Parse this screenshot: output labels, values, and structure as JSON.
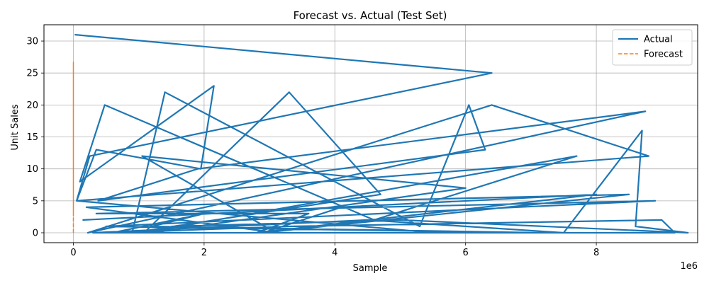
{
  "chart_data": {
    "type": "line",
    "title": "Forecast vs. Actual (Test Set)",
    "xlabel": "Sample",
    "ylabel": "Unit Sales",
    "x_offset_text": "1e6",
    "xlim": [
      -0.45,
      9.55
    ],
    "ylim": [
      -1.55,
      32.55
    ],
    "x_ticks": [
      0,
      2,
      4,
      6,
      8
    ],
    "x_tick_labels": [
      "0",
      "2",
      "4",
      "6",
      "8"
    ],
    "y_ticks": [
      0,
      5,
      10,
      15,
      20,
      25,
      30
    ],
    "y_tick_labels": [
      "0",
      "5",
      "10",
      "15",
      "20",
      "25",
      "30"
    ],
    "grid": true,
    "legend": "top-right",
    "series": [
      {
        "name": "Actual",
        "color": "#1f77b4",
        "style": "solid",
        "x": [
          0.02,
          6.4,
          0.25,
          0.05,
          0.35,
          1.95,
          2.15,
          0.1,
          0.48,
          4.6,
          7.7,
          1.08,
          3.3,
          4.7,
          0.9,
          1.4,
          5.3,
          6.05,
          6.3,
          0.38,
          1.9,
          8.75,
          0.22,
          6.4,
          8.8,
          0.05,
          5.5,
          1.2,
          6.0,
          1.05,
          3.1,
          0.2,
          8.5,
          2.9,
          4.1,
          0.15,
          8.0,
          2.8,
          3.6,
          0.35,
          8.9,
          0.5,
          7.2,
          1.2,
          2.0,
          0.6,
          3.3,
          9.0,
          9.2,
          0.3,
          4.5,
          7.5,
          8.7,
          8.6,
          9.4,
          5.0,
          1.5
        ],
        "y": [
          31,
          25,
          12,
          5,
          13,
          10,
          23,
          8,
          20,
          2,
          12,
          0,
          22,
          6,
          0,
          22,
          1,
          20,
          13,
          5,
          10,
          19,
          0,
          20,
          12,
          5,
          0,
          0,
          7,
          12,
          0,
          4,
          6,
          0,
          4,
          2,
          6,
          0,
          3,
          3,
          5,
          1,
          0,
          1,
          3,
          0,
          1,
          2,
          0,
          0,
          2,
          0,
          16,
          1,
          0,
          2,
          1
        ]
      },
      {
        "name": "Forecast",
        "color": "#ff7f0e",
        "style": "dashed",
        "x": [
          0.0,
          0.0,
          0.0,
          0.0,
          0.0,
          0.0
        ],
        "y": [
          0.0,
          26.7,
          3.0,
          18.0,
          5.0,
          12.0
        ]
      }
    ]
  }
}
